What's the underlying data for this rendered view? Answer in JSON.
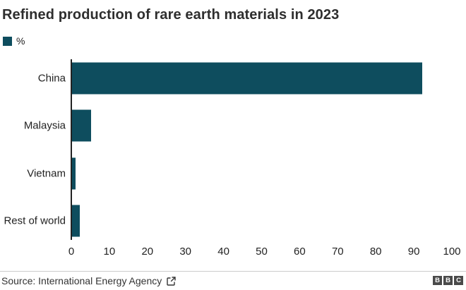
{
  "header": {
    "title": "Refined production of rare earth materials in 2023"
  },
  "legend": {
    "label": "%",
    "swatch_color": "#0e4d5e"
  },
  "chart_data": {
    "type": "bar",
    "orientation": "horizontal",
    "title": "Refined production of rare earth materials in 2023",
    "series_name": "%",
    "categories": [
      "China",
      "Malaysia",
      "Vietnam",
      "Rest of world"
    ],
    "values": [
      92,
      5,
      1,
      2
    ],
    "xlim": [
      0,
      100
    ],
    "x_ticks": [
      0,
      10,
      20,
      30,
      40,
      50,
      60,
      70,
      80,
      90,
      100
    ],
    "bar_color": "#0e4d5e",
    "axis_color": "#222222",
    "grid": false,
    "legend_position": "top-left"
  },
  "footer": {
    "source": "Source: International Energy Agency",
    "logo_letters": [
      "B",
      "B",
      "C"
    ]
  }
}
